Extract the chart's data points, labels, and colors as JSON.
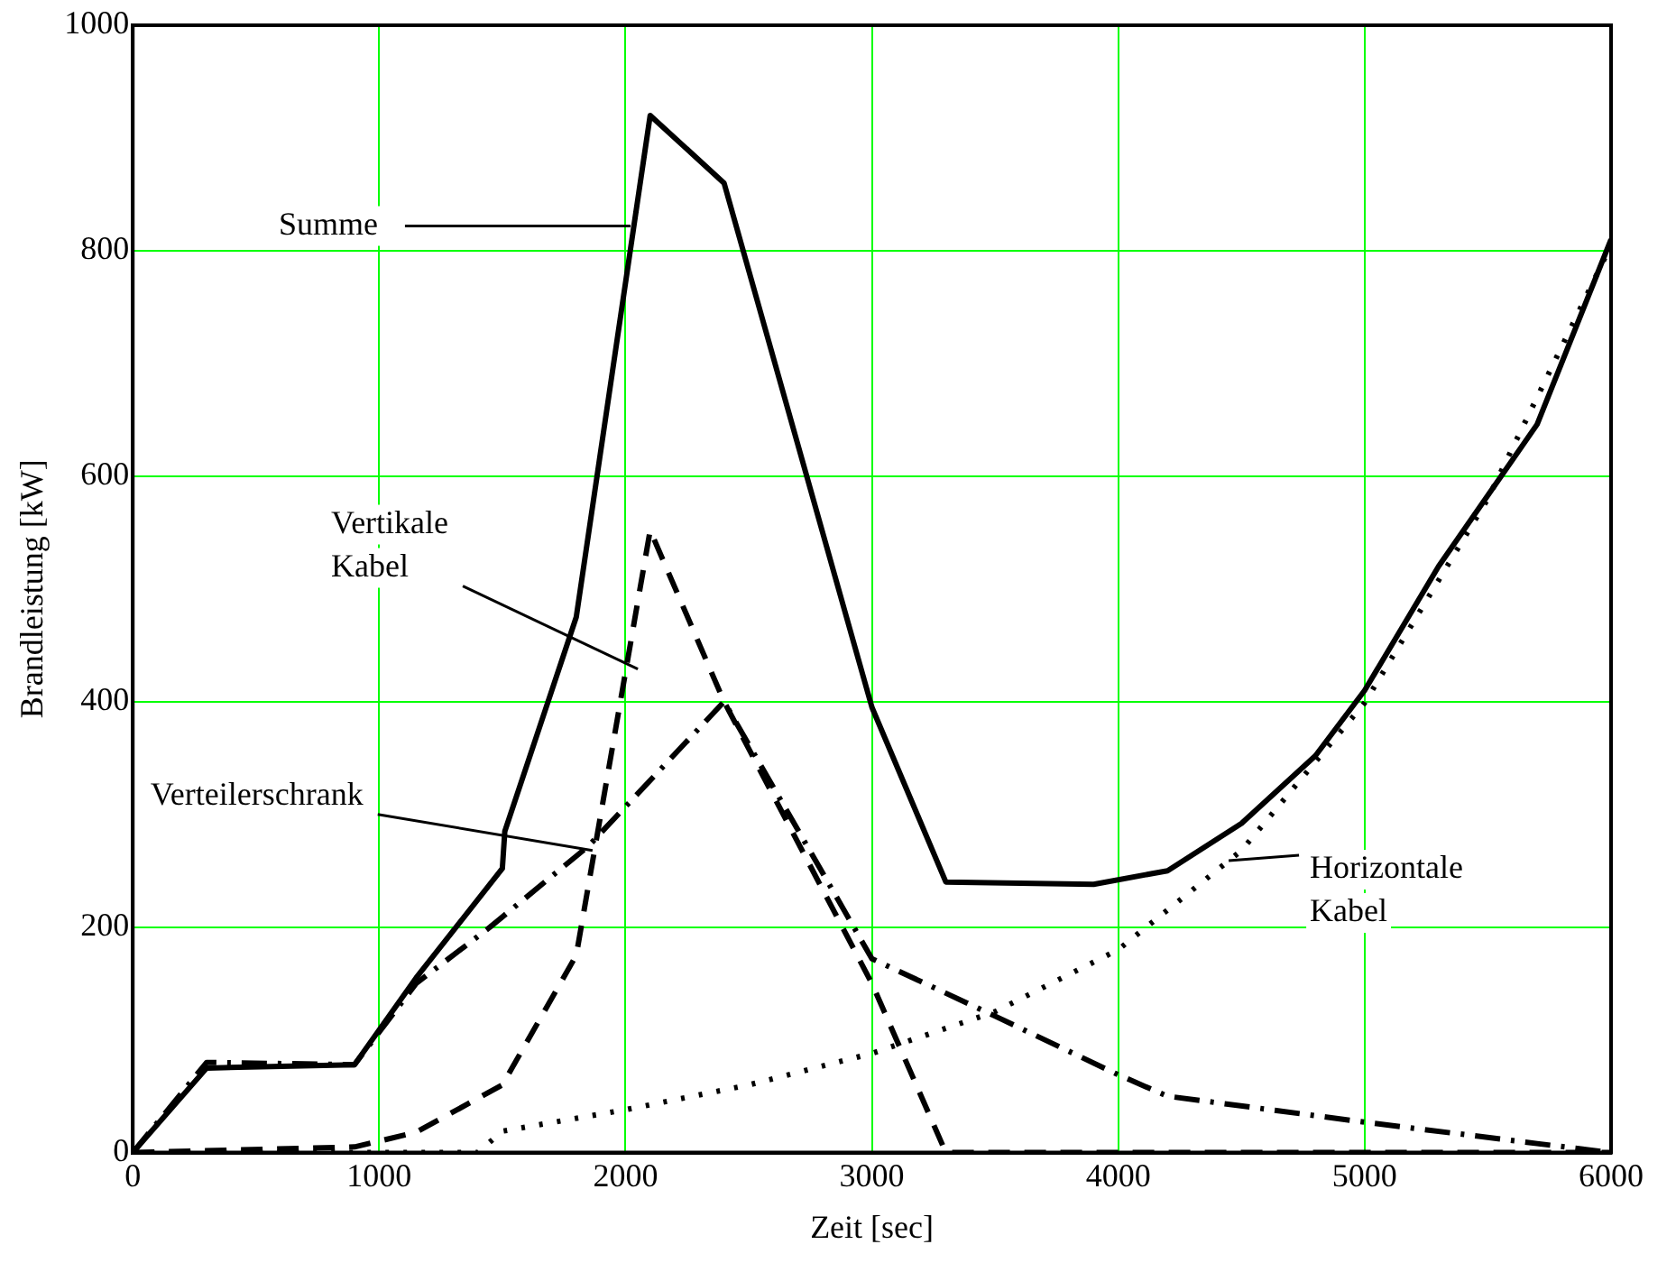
{
  "chart_data": {
    "type": "line",
    "xlabel": "Zeit [sec]",
    "ylabel": "Brandleistung [kW]",
    "xlim": [
      0,
      6000
    ],
    "xticks": [
      0,
      1000,
      2000,
      3000,
      4000,
      5000,
      6000
    ],
    "ylim": [
      0,
      1000
    ],
    "yticks": [
      0,
      200,
      400,
      600,
      800,
      1000
    ],
    "grid": true,
    "legend": false,
    "marker": "none",
    "series": [
      {
        "color": "#000000",
        "line_style": "solid",
        "x": [
          0,
          300,
          900,
          1150,
          1500,
          1510,
          1800,
          2100,
          2400,
          3000,
          3300,
          3900,
          4200,
          4500,
          4800,
          5000,
          5300,
          5700,
          6000
        ],
        "values": [
          0,
          75,
          78,
          155,
          252,
          285,
          475,
          920,
          860,
          395,
          240,
          238,
          250,
          292,
          352,
          410,
          520,
          646,
          810
        ]
      },
      {
        "color": "#000000",
        "line_style": "dashed",
        "x": [
          0,
          900,
          1150,
          1500,
          1800,
          2100,
          2400,
          3000,
          3300,
          6000
        ],
        "values": [
          0,
          5,
          18,
          60,
          175,
          552,
          400,
          150,
          0,
          0
        ]
      },
      {
        "color": "#000000",
        "line_style": "dashdot",
        "x": [
          0,
          300,
          900,
          1150,
          1450,
          1850,
          2400,
          3000,
          3500,
          4000,
          4200,
          5000,
          5700,
          6000
        ],
        "values": [
          0,
          80,
          78,
          150,
          200,
          272,
          400,
          172,
          121,
          69,
          50,
          27,
          8,
          0
        ]
      },
      {
        "color": "#000000",
        "line_style": "dotted",
        "x": [
          0,
          1400,
          1500,
          2000,
          2500,
          3000,
          3500,
          4000,
          4500,
          5000,
          5500,
          6000
        ],
        "values": [
          0,
          0,
          19,
          38,
          60,
          88,
          125,
          180,
          268,
          399,
          580,
          805
        ]
      }
    ],
    "annotations": [
      {
        "text": "Summe",
        "x": 2020,
        "y": 822
      },
      {
        "text": "Vertikale\nKabel",
        "x": 2050,
        "y": 429
      },
      {
        "text": "Verteilerschrank",
        "x": 1866,
        "y": 268
      },
      {
        "text": "Horizontale\nKabel",
        "x": 4448,
        "y": 259
      }
    ]
  }
}
